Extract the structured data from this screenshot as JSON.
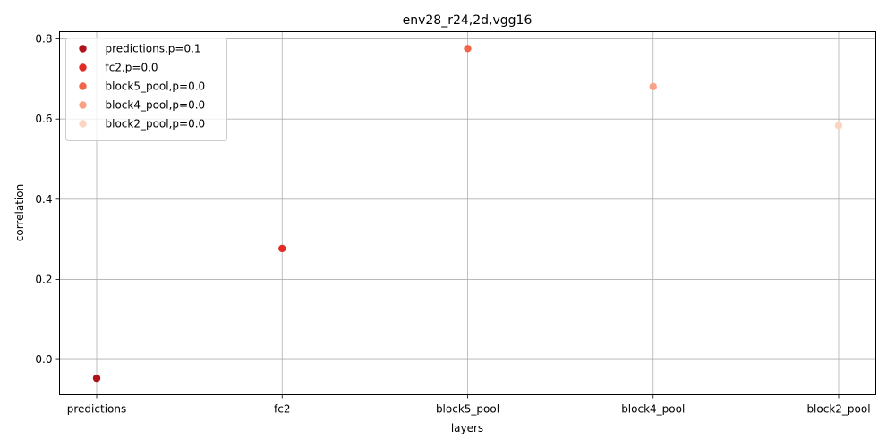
{
  "chart_data": {
    "type": "scatter",
    "title": "env28_r24,2d,vgg16",
    "xlabel": "layers",
    "ylabel": "correlation",
    "categories": [
      "predictions",
      "fc2",
      "block5_pool",
      "block4_pool",
      "block2_pool"
    ],
    "ylim": [
      -0.088,
      0.818
    ],
    "yticks": [
      0.0,
      0.2,
      0.4,
      0.6,
      0.8
    ],
    "ytick_labels": [
      "0.0",
      "0.2",
      "0.4",
      "0.6",
      "0.8"
    ],
    "grid": true,
    "legend_position": "top-left",
    "series": [
      {
        "name": "predictions,p=0.1",
        "x": "predictions",
        "y": -0.047,
        "color": "#b0121b"
      },
      {
        "name": "fc2,p=0.0",
        "x": "fc2",
        "y": 0.277,
        "color": "#df2c26"
      },
      {
        "name": "block5_pool,p=0.0",
        "x": "block5_pool",
        "y": 0.776,
        "color": "#f3644c"
      },
      {
        "name": "block4_pool,p=0.0",
        "x": "block4_pool",
        "y": 0.681,
        "color": "#f9a184"
      },
      {
        "name": "block2_pool,p=0.0",
        "x": "block2_pool",
        "y": 0.584,
        "color": "#fdd4c2"
      }
    ]
  }
}
